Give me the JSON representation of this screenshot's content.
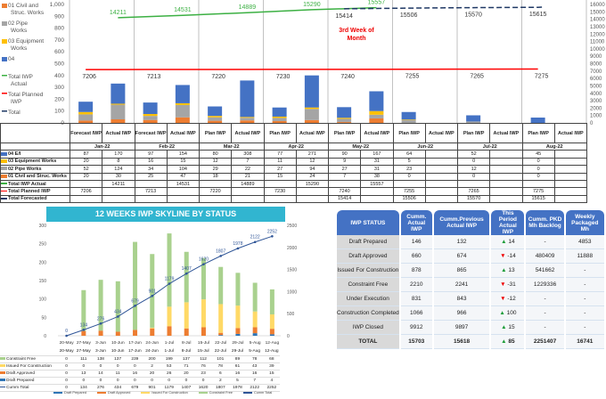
{
  "top_chart": {
    "left_axis": [
      0,
      100,
      200,
      300,
      400,
      500,
      600,
      700,
      800,
      900,
      "1,000"
    ],
    "right_axis": [
      0,
      1000,
      2000,
      3000,
      4000,
      5000,
      6000,
      7000,
      8000,
      9000,
      10000,
      11000,
      12000,
      13000,
      14000,
      15000,
      16000
    ],
    "annotation": "3rd Week of Month",
    "legend": [
      {
        "label": "01 Civil and Struc. Works",
        "color": "#ed7d31"
      },
      {
        "label": "02 Pipe Works",
        "color": "#a5a5a5"
      },
      {
        "label": "03 Equipment Works",
        "color": "#ffc000"
      },
      {
        "label": "04 E/I",
        "color": "#4472c4"
      },
      {
        "label": "Total IWP Actual",
        "color": "#3cb043"
      },
      {
        "label": "Total Planned IWP",
        "color": "#ff0000"
      },
      {
        "label": "Total Forecasted",
        "color": "#1f3864"
      }
    ],
    "months": [
      "Jan-22",
      "Feb-22",
      "Mar-22",
      "Apr-22",
      "May-22",
      "Jun-22",
      "Jul-22",
      "Aug-22"
    ],
    "columns": [
      "Forecast IWP",
      "Actual IWP",
      "Forecast IWP",
      "Actual IWP",
      "Plan IWP",
      "Actual IWP",
      "Plan IWP",
      "Actual IWP",
      "Plan IWP",
      "Actual IWP",
      "Plan IWP",
      "Actual IWP",
      "Plan IWP",
      "Actual IWP",
      "Plan IWP",
      "Actual IWP"
    ],
    "rows": [
      {
        "label": "04 E/I",
        "color": "#4472c4",
        "values": [
          87,
          170,
          97,
          154,
          80,
          308,
          77,
          271,
          90,
          167,
          64,
          "",
          52,
          "",
          45,
          ""
        ]
      },
      {
        "label": "03 Equipment Works",
        "color": "#ffc000",
        "values": [
          20,
          8,
          16,
          15,
          12,
          7,
          11,
          12,
          9,
          31,
          5,
          "",
          0,
          "",
          0,
          ""
        ]
      },
      {
        "label": "02 Pipe Works",
        "color": "#a5a5a5",
        "values": [
          52,
          124,
          34,
          104,
          29,
          22,
          27,
          94,
          27,
          31,
          23,
          "",
          12,
          "",
          0,
          ""
        ]
      },
      {
        "label": "01 Civil and Struc. Works",
        "color": "#ed7d31",
        "values": [
          20,
          30,
          25,
          47,
          18,
          21,
          15,
          24,
          7,
          38,
          0,
          "",
          0,
          "",
          0,
          ""
        ]
      },
      {
        "label": "Total IWP Actual",
        "color": "#3cb043",
        "values": [
          "",
          14211,
          "",
          14531,
          "",
          14889,
          "",
          15290,
          "",
          15557,
          "",
          "",
          "",
          "",
          "",
          ""
        ]
      },
      {
        "label": "Total Planned IWP",
        "color": "#ff0000",
        "values": [
          7206,
          "",
          7213,
          "",
          7220,
          "",
          7230,
          "",
          7240,
          "",
          7255,
          "",
          7265,
          "",
          7275,
          ""
        ]
      },
      {
        "label": "Total Forecasted",
        "color": "#1f3864",
        "values": [
          "",
          "",
          "",
          "",
          "",
          "",
          "",
          "",
          15414,
          "",
          15506,
          "",
          15570,
          "",
          15615,
          ""
        ]
      }
    ]
  },
  "skyline": {
    "title": "12 WEEKS IWP SKYLINE BY STATUS",
    "left_axis": [
      0,
      50,
      100,
      150,
      200,
      250,
      300
    ],
    "right_axis": [
      0,
      500,
      1000,
      1500,
      2000,
      2500
    ],
    "weeks": [
      "20-May",
      "27-May",
      "3-Jun",
      "10-Jun",
      "17-Jun",
      "24-Jun",
      "1-Jul",
      "8-Jul",
      "15-Jul",
      "22-Jul",
      "29-Jul",
      "5-Aug",
      "12-Aug"
    ],
    "series": [
      {
        "name": "Constraint Free",
        "color": "#a9d18e",
        "values": [
          0,
          111,
          138,
          137,
          239,
          200,
          199,
          137,
          112,
          101,
          89,
          78,
          68
        ]
      },
      {
        "name": "Issued For Construction",
        "color": "#ffd966",
        "values": [
          0,
          0,
          0,
          0,
          0,
          2,
          53,
          71,
          76,
          78,
          61,
          43,
          39
        ]
      },
      {
        "name": "Draft Approved",
        "color": "#ed7d31",
        "values": [
          0,
          13,
          14,
          11,
          16,
          20,
          26,
          20,
          23,
          6,
          16,
          16,
          15
        ]
      },
      {
        "name": "Draft Prepared",
        "color": "#2e75b6",
        "values": [
          0,
          0,
          0,
          0,
          0,
          0,
          0,
          0,
          0,
          2,
          5,
          7,
          4
        ]
      },
      {
        "name": "Cumm Total",
        "color": "#2f5597",
        "values": [
          0,
          134,
          276,
          434,
          679,
          901,
          1179,
          1407,
          1620,
          1807,
          1978,
          2122,
          2252
        ]
      }
    ],
    "legend": [
      "Draft Prepared",
      "Draft Approved",
      "Issued For Construction",
      "Constraint Free",
      "Cumm Total"
    ]
  },
  "status_table": {
    "headers": [
      "IWP STATUS",
      "Cumm. Actual IWP",
      "Cumm.Previous Actual IWP",
      "This Period Actual IWP",
      "Cumm. PKD Mh Backlog",
      "Weekly Packaged Mh"
    ],
    "rows": [
      [
        "Draft Prepared",
        "146",
        "132",
        "up",
        "14",
        "-",
        "4853"
      ],
      [
        "Draft Approved",
        "660",
        "674",
        "down",
        "-14",
        "480409",
        "11888"
      ],
      [
        "Issued For Construction",
        "878",
        "865",
        "up",
        "13",
        "541662",
        "-"
      ],
      [
        "Constraint Free",
        "2210",
        "2241",
        "down",
        "-31",
        "1229336",
        "-"
      ],
      [
        "Under Execution",
        "831",
        "843",
        "down",
        "-12",
        "-",
        "-"
      ],
      [
        "Construction Completed",
        "1066",
        "966",
        "up",
        "100",
        "-",
        "-"
      ],
      [
        "IWP Closed",
        "9912",
        "9897",
        "up",
        "15",
        "-",
        "-"
      ],
      [
        "TOTAL",
        "15703",
        "15618",
        "up",
        "85",
        "2251407",
        "16741"
      ]
    ]
  }
}
